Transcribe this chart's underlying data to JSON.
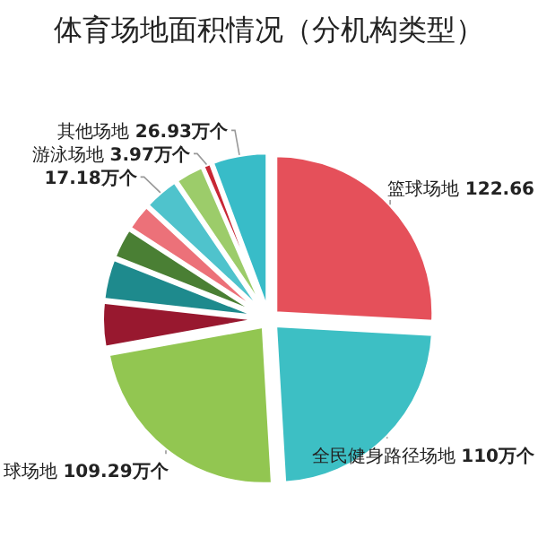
{
  "chart_data": {
    "type": "pie",
    "title": "体育场地面积情况（分机构类型）",
    "categories": [
      "篮球场地",
      "全民健身路径场地",
      "球场地",
      null,
      null,
      null,
      null,
      null,
      null,
      "游泳场地",
      "其他场地"
    ],
    "values": [
      122.66,
      110,
      109.29,
      22,
      20,
      15,
      13,
      17.18,
      14,
      3.97,
      26.93
    ],
    "value_labels": [
      "122.66",
      "110万个",
      "109.29万个",
      null,
      null,
      null,
      null,
      "17.18万个",
      null,
      "3.97万个",
      "26.93万个"
    ],
    "colors": [
      "#e5505a",
      "#3dbfc4",
      "#92c651",
      "#98182f",
      "#1e8a8d",
      "#4a7f34",
      "#ec7179",
      "#4fc3cc",
      "#9ccc6a",
      "#c82835",
      "#38bcc8"
    ]
  }
}
